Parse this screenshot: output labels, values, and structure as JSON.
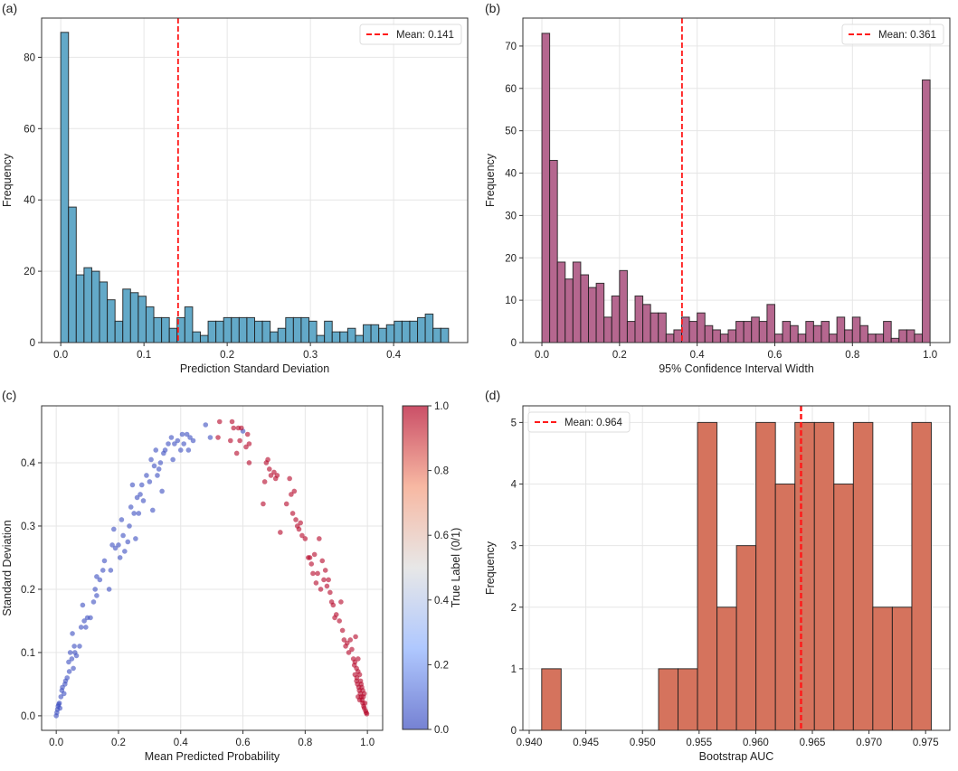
{
  "chart_data": [
    {
      "panel": "(a)",
      "type": "bar",
      "title": "",
      "xlabel": "Prediction Standard Deviation",
      "ylabel": "Frequency",
      "xlim": [
        -0.023,
        0.489
      ],
      "ylim": [
        0,
        91
      ],
      "xticks": [
        "0.0",
        "0.1",
        "0.2",
        "0.3",
        "0.4"
      ],
      "yticks": [
        "0",
        "20",
        "40",
        "60",
        "80"
      ],
      "grid": true,
      "color": "#63a9c8",
      "bin_start": 0,
      "bin_width": 0.00932,
      "values": [
        87,
        38,
        19,
        21,
        20,
        17,
        12,
        6,
        15,
        14,
        13,
        10,
        7,
        7,
        4,
        7,
        10,
        3,
        2,
        6,
        6,
        7,
        7,
        7,
        7,
        6,
        6,
        3,
        4,
        7,
        7,
        7,
        6,
        2,
        6,
        3,
        3,
        4,
        2,
        5,
        5,
        4,
        5,
        6,
        6,
        6,
        7,
        8,
        4,
        4
      ],
      "mean": 0.141,
      "legend": {
        "label": "Mean: 0.141",
        "placement": "upper right"
      }
    },
    {
      "panel": "(b)",
      "type": "bar",
      "title": "",
      "xlabel": "95% Confidence Interval Width",
      "ylabel": "Frequency",
      "xlim": [
        -0.049,
        1.051
      ],
      "ylim": [
        0,
        76.6
      ],
      "xticks": [
        "0.0",
        "0.2",
        "0.4",
        "0.6",
        "0.8",
        "1.0"
      ],
      "yticks": [
        "0",
        "10",
        "20",
        "30",
        "40",
        "50",
        "60",
        "70"
      ],
      "grid": true,
      "color": "#b5678f",
      "bin_start": 0,
      "bin_width": 0.02,
      "values": [
        73,
        43,
        19,
        15,
        19,
        16,
        13,
        14,
        6,
        11,
        17,
        5,
        11,
        9,
        7,
        7,
        2,
        3,
        6,
        5,
        7,
        4,
        3,
        2,
        3,
        5,
        5,
        6,
        5,
        9,
        2,
        5,
        4,
        2,
        5,
        4,
        5,
        2,
        6,
        3,
        6,
        4,
        2,
        2,
        5,
        1,
        3,
        3,
        2,
        62
      ],
      "mean": 0.361,
      "legend": {
        "label": "Mean: 0.361",
        "placement": "upper right"
      }
    },
    {
      "panel": "(c)",
      "type": "scatter",
      "title": "",
      "xlabel": "Mean Predicted Probability",
      "ylabel": "Standard Deviation",
      "xlim": [
        -0.047,
        1.049
      ],
      "ylim": [
        -0.023,
        0.49
      ],
      "xticks": [
        "0.0",
        "0.2",
        "0.4",
        "0.6",
        "0.8",
        "1.0"
      ],
      "yticks": [
        "0.0",
        "0.1",
        "0.2",
        "0.3",
        "0.4"
      ],
      "grid": true,
      "colorbar": {
        "label": "True Label (0/1)",
        "ticks": [
          "0.0",
          "0.2",
          "0.4",
          "0.6",
          "0.8",
          "1.0"
        ],
        "cmap_low": "#3b4cc0",
        "cmap_mid": "#dddddd",
        "cmap_high": "#b40426"
      },
      "points_label0": [
        [
          0.0,
          0.0
        ],
        [
          0.002,
          0.005
        ],
        [
          0.004,
          0.01
        ],
        [
          0.006,
          0.015
        ],
        [
          0.008,
          0.018
        ],
        [
          0.01,
          0.02
        ],
        [
          0.012,
          0.012
        ],
        [
          0.015,
          0.03
        ],
        [
          0.018,
          0.04
        ],
        [
          0.02,
          0.045
        ],
        [
          0.025,
          0.035
        ],
        [
          0.028,
          0.05
        ],
        [
          0.03,
          0.055
        ],
        [
          0.035,
          0.06
        ],
        [
          0.04,
          0.085
        ],
        [
          0.042,
          0.07
        ],
        [
          0.045,
          0.1
        ],
        [
          0.05,
          0.09
        ],
        [
          0.052,
          0.13
        ],
        [
          0.055,
          0.075
        ],
        [
          0.058,
          0.11
        ],
        [
          0.06,
          0.1
        ],
        [
          0.065,
          0.095
        ],
        [
          0.075,
          0.11
        ],
        [
          0.08,
          0.14
        ],
        [
          0.085,
          0.175
        ],
        [
          0.09,
          0.15
        ],
        [
          0.095,
          0.14
        ],
        [
          0.1,
          0.155
        ],
        [
          0.11,
          0.155
        ],
        [
          0.12,
          0.18
        ],
        [
          0.125,
          0.2
        ],
        [
          0.13,
          0.19
        ],
        [
          0.13,
          0.22
        ],
        [
          0.14,
          0.215
        ],
        [
          0.15,
          0.23
        ],
        [
          0.155,
          0.245
        ],
        [
          0.17,
          0.2
        ],
        [
          0.175,
          0.23
        ],
        [
          0.18,
          0.27
        ],
        [
          0.185,
          0.295
        ],
        [
          0.19,
          0.265
        ],
        [
          0.2,
          0.27
        ],
        [
          0.205,
          0.25
        ],
        [
          0.21,
          0.31
        ],
        [
          0.215,
          0.285
        ],
        [
          0.22,
          0.26
        ],
        [
          0.23,
          0.275
        ],
        [
          0.235,
          0.3
        ],
        [
          0.24,
          0.33
        ],
        [
          0.245,
          0.365
        ],
        [
          0.25,
          0.32
        ],
        [
          0.255,
          0.28
        ],
        [
          0.26,
          0.345
        ],
        [
          0.265,
          0.32
        ],
        [
          0.27,
          0.35
        ],
        [
          0.275,
          0.365
        ],
        [
          0.28,
          0.34
        ],
        [
          0.29,
          0.38
        ],
        [
          0.3,
          0.37
        ],
        [
          0.305,
          0.405
        ],
        [
          0.31,
          0.325
        ],
        [
          0.315,
          0.395
        ],
        [
          0.32,
          0.42
        ],
        [
          0.325,
          0.38
        ],
        [
          0.33,
          0.39
        ],
        [
          0.335,
          0.4
        ],
        [
          0.34,
          0.355
        ],
        [
          0.345,
          0.415
        ],
        [
          0.35,
          0.42
        ],
        [
          0.36,
          0.43
        ],
        [
          0.37,
          0.44
        ],
        [
          0.375,
          0.405
        ],
        [
          0.38,
          0.43
        ],
        [
          0.39,
          0.435
        ],
        [
          0.4,
          0.42
        ],
        [
          0.405,
          0.445
        ],
        [
          0.41,
          0.43
        ],
        [
          0.42,
          0.445
        ],
        [
          0.425,
          0.42
        ],
        [
          0.43,
          0.44
        ],
        [
          0.44,
          0.435
        ],
        [
          0.48,
          0.46
        ],
        [
          0.495,
          0.44
        ],
        [
          0.6,
          0.45
        ]
      ],
      "points_label1": [
        [
          0.52,
          0.44
        ],
        [
          0.525,
          0.465
        ],
        [
          0.56,
          0.435
        ],
        [
          0.565,
          0.465
        ],
        [
          0.57,
          0.455
        ],
        [
          0.58,
          0.415
        ],
        [
          0.585,
          0.455
        ],
        [
          0.59,
          0.435
        ],
        [
          0.595,
          0.455
        ],
        [
          0.61,
          0.425
        ],
        [
          0.615,
          0.445
        ],
        [
          0.62,
          0.43
        ],
        [
          0.62,
          0.4
        ],
        [
          0.665,
          0.335
        ],
        [
          0.67,
          0.37
        ],
        [
          0.675,
          0.4
        ],
        [
          0.68,
          0.405
        ],
        [
          0.685,
          0.39
        ],
        [
          0.69,
          0.38
        ],
        [
          0.7,
          0.385
        ],
        [
          0.705,
          0.375
        ],
        [
          0.71,
          0.38
        ],
        [
          0.72,
          0.29
        ],
        [
          0.74,
          0.335
        ],
        [
          0.75,
          0.375
        ],
        [
          0.755,
          0.35
        ],
        [
          0.76,
          0.32
        ],
        [
          0.765,
          0.355
        ],
        [
          0.77,
          0.31
        ],
        [
          0.775,
          0.3
        ],
        [
          0.78,
          0.295
        ],
        [
          0.785,
          0.305
        ],
        [
          0.79,
          0.285
        ],
        [
          0.8,
          0.28
        ],
        [
          0.81,
          0.25
        ],
        [
          0.815,
          0.25
        ],
        [
          0.82,
          0.24
        ],
        [
          0.825,
          0.225
        ],
        [
          0.83,
          0.255
        ],
        [
          0.835,
          0.21
        ],
        [
          0.84,
          0.225
        ],
        [
          0.845,
          0.28
        ],
        [
          0.85,
          0.2
        ],
        [
          0.855,
          0.245
        ],
        [
          0.86,
          0.215
        ],
        [
          0.865,
          0.23
        ],
        [
          0.87,
          0.205
        ],
        [
          0.875,
          0.215
        ],
        [
          0.88,
          0.195
        ],
        [
          0.885,
          0.18
        ],
        [
          0.89,
          0.175
        ],
        [
          0.895,
          0.155
        ],
        [
          0.9,
          0.16
        ],
        [
          0.91,
          0.15
        ],
        [
          0.915,
          0.18
        ],
        [
          0.92,
          0.135
        ],
        [
          0.925,
          0.12
        ],
        [
          0.93,
          0.11
        ],
        [
          0.935,
          0.115
        ],
        [
          0.94,
          0.1
        ],
        [
          0.945,
          0.12
        ],
        [
          0.95,
          0.105
        ],
        [
          0.955,
          0.09
        ],
        [
          0.958,
          0.08
        ],
        [
          0.96,
          0.085
        ],
        [
          0.962,
          0.125
        ],
        [
          0.965,
          0.075
        ],
        [
          0.966,
          0.06
        ],
        [
          0.968,
          0.05
        ],
        [
          0.97,
          0.09
        ],
        [
          0.972,
          0.045
        ],
        [
          0.974,
          0.04
        ],
        [
          0.975,
          0.065
        ],
        [
          0.977,
          0.035
        ],
        [
          0.978,
          0.055
        ],
        [
          0.98,
          0.03
        ],
        [
          0.982,
          0.045
        ],
        [
          0.983,
          0.025
        ],
        [
          0.985,
          0.02
        ],
        [
          0.987,
          0.03
        ],
        [
          0.988,
          0.015
        ],
        [
          0.99,
          0.012
        ],
        [
          0.992,
          0.02
        ],
        [
          0.994,
          0.008
        ],
        [
          0.996,
          0.005
        ],
        [
          0.998,
          0.003
        ],
        [
          0.965,
          0.055
        ],
        [
          0.97,
          0.03
        ],
        [
          0.975,
          0.025
        ],
        [
          0.98,
          0.05
        ],
        [
          0.985,
          0.04
        ],
        [
          0.99,
          0.035
        ],
        [
          0.96,
          0.065
        ],
        [
          0.97,
          0.07
        ]
      ]
    },
    {
      "panel": "(d)",
      "type": "bar",
      "title": "",
      "xlabel": "Bootstrap AUC",
      "ylabel": "Frequency",
      "xlim": [
        0.93944,
        0.97714
      ],
      "ylim": [
        0,
        5.27
      ],
      "xticks": [
        "0.940",
        "0.945",
        "0.950",
        "0.955",
        "0.960",
        "0.965",
        "0.970",
        "0.975"
      ],
      "yticks": [
        "0",
        "1",
        "2",
        "3",
        "4",
        "5"
      ],
      "grid": true,
      "color": "#d5735d",
      "bin_start": 0.9411,
      "bin_width": 0.00172,
      "values": [
        1,
        0,
        0,
        0,
        0,
        0,
        1,
        1,
        5,
        2,
        3,
        5,
        4,
        5,
        5,
        4,
        5,
        2,
        2,
        5
      ],
      "mean": 0.964,
      "legend": {
        "label": "Mean: 0.964",
        "placement": "upper left"
      }
    }
  ]
}
